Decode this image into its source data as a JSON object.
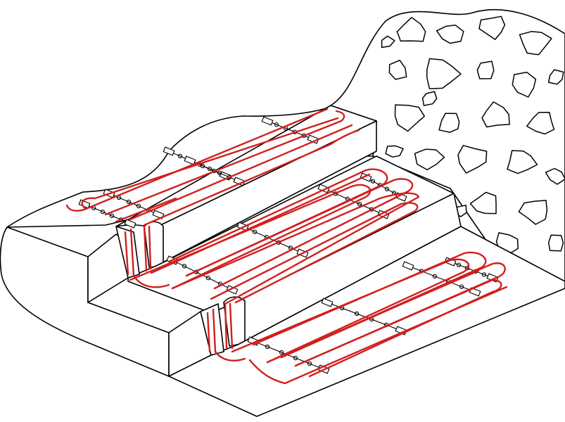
{
  "colors": {
    "cable": "#d21f1f",
    "outline": "#000000",
    "background": "#ffffff"
  },
  "diagram": {
    "subject": "",
    "labels": []
  }
}
